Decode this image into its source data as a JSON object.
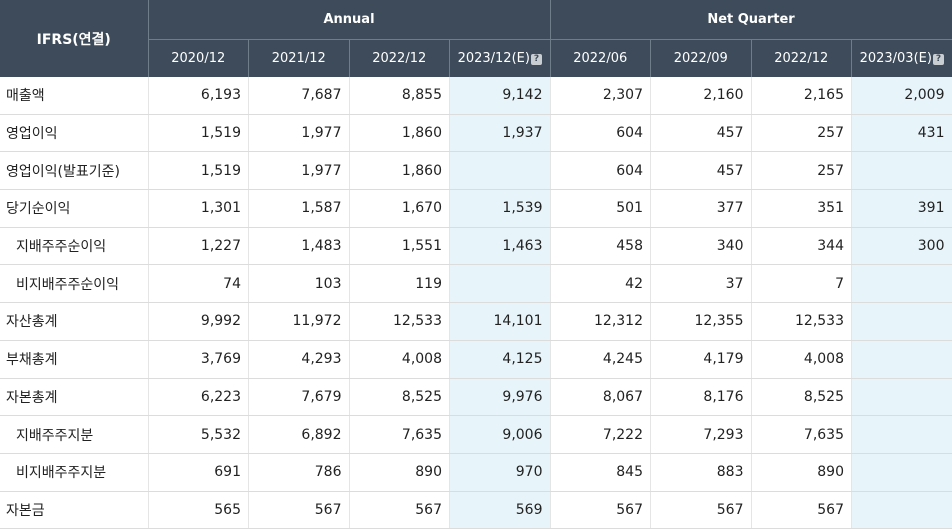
{
  "table": {
    "corner_label": "IFRS(연결)",
    "groups": {
      "annual": "Annual",
      "quarter": "Net Quarter"
    },
    "columns": [
      "2020/12",
      "2021/12",
      "2022/12",
      "2023/12(E)",
      "2022/06",
      "2022/09",
      "2022/12",
      "2023/03(E)"
    ],
    "help_icon": "?",
    "rows": [
      {
        "label": "매출액",
        "values": [
          "6,193",
          "7,687",
          "8,855",
          "9,142",
          "2,307",
          "2,160",
          "2,165",
          "2,009"
        ]
      },
      {
        "label": "영업이익",
        "values": [
          "1,519",
          "1,977",
          "1,860",
          "1,937",
          "604",
          "457",
          "257",
          "431"
        ]
      },
      {
        "label": "영업이익(발표기준)",
        "values": [
          "1,519",
          "1,977",
          "1,860",
          "",
          "604",
          "457",
          "257",
          ""
        ]
      },
      {
        "label": "당기순이익",
        "values": [
          "1,301",
          "1,587",
          "1,670",
          "1,539",
          "501",
          "377",
          "351",
          "391"
        ]
      },
      {
        "label": "지배주주순이익",
        "values": [
          "1,227",
          "1,483",
          "1,551",
          "1,463",
          "458",
          "340",
          "344",
          "300"
        ]
      },
      {
        "label": "비지배주주순이익",
        "values": [
          "74",
          "103",
          "119",
          "",
          "42",
          "37",
          "7",
          ""
        ]
      },
      {
        "label": "자산총계",
        "values": [
          "9,992",
          "11,972",
          "12,533",
          "14,101",
          "12,312",
          "12,355",
          "12,533",
          ""
        ]
      },
      {
        "label": "부채총계",
        "values": [
          "3,769",
          "4,293",
          "4,008",
          "4,125",
          "4,245",
          "4,179",
          "4,008",
          ""
        ]
      },
      {
        "label": "자본총계",
        "values": [
          "6,223",
          "7,679",
          "8,525",
          "9,976",
          "8,067",
          "8,176",
          "8,525",
          ""
        ]
      },
      {
        "label": "지배주주지분",
        "values": [
          "5,532",
          "6,892",
          "7,635",
          "9,006",
          "7,222",
          "7,293",
          "7,635",
          ""
        ]
      },
      {
        "label": "비지배주주지분",
        "values": [
          "691",
          "786",
          "890",
          "970",
          "845",
          "883",
          "890",
          ""
        ]
      },
      {
        "label": "자본금",
        "values": [
          "565",
          "567",
          "567",
          "569",
          "567",
          "567",
          "567",
          ""
        ]
      }
    ]
  }
}
